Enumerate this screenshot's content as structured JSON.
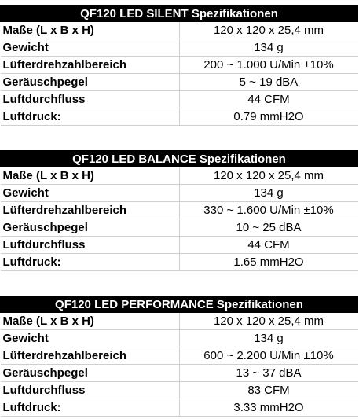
{
  "tables": [
    {
      "title": "QF120 LED SILENT Spezifikationen",
      "rows": [
        {
          "label": "Maße (L x B x H)",
          "value": "120 x 120 x 25,4 mm"
        },
        {
          "label": "Gewicht",
          "value": "134 g"
        },
        {
          "label": "Lüfterdrehzahlbereich",
          "value": "200 ~ 1.000 U/Min  ±10%"
        },
        {
          "label": "Geräuschpegel",
          "value": "5 ~ 19 dBA"
        },
        {
          "label": "Luftdurchfluss",
          "value": "44 CFM"
        },
        {
          "label": "Luftdruck:",
          "value": "0.79 mmH2O"
        }
      ]
    },
    {
      "title": "QF120 LED BALANCE Spezifikationen",
      "rows": [
        {
          "label": "Maße (L x B x H)",
          "value": "120 x 120 x 25,4 mm"
        },
        {
          "label": "Gewicht",
          "value": "134 g"
        },
        {
          "label": "Lüfterdrehzahlbereich",
          "value": "330 ~ 1.600 U/Min  ±10%"
        },
        {
          "label": "Geräuschpegel",
          "value": "10 ~ 25 dBA"
        },
        {
          "label": "Luftdurchfluss",
          "value": "44 CFM"
        },
        {
          "label": "Luftdruck:",
          "value": "1.65 mmH2O"
        }
      ]
    },
    {
      "title": "QF120 LED PERFORMANCE Spezifikationen",
      "rows": [
        {
          "label": "Maße (L x B x H)",
          "value": "120 x 120 x 25,4 mm"
        },
        {
          "label": "Gewicht",
          "value": "134 g"
        },
        {
          "label": "Lüfterdrehzahlbereich",
          "value": "600 ~ 2.200 U/Min  ±10%"
        },
        {
          "label": "Geräuschpegel",
          "value": "13 ~ 37 dBA"
        },
        {
          "label": "Luftdurchfluss",
          "value": "83 CFM"
        },
        {
          "label": "Luftdruck:",
          "value": "3.33 mmH2O"
        }
      ]
    }
  ]
}
